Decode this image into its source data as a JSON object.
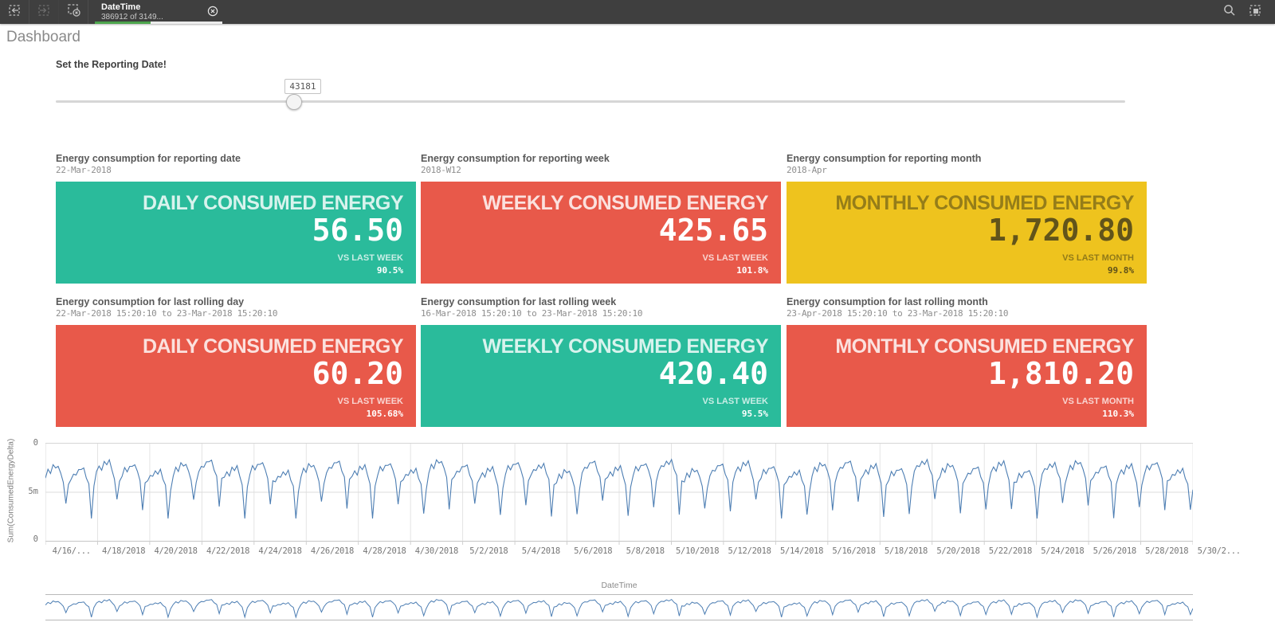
{
  "topbar": {
    "icons": {
      "undo": "undo-selection-icon",
      "redo": "redo-selection-icon",
      "clear": "clear-selections-icon",
      "search": "search-icon",
      "selections_tool": "selections-tool-icon",
      "chip_close": "close-icon"
    },
    "selection_chip": {
      "field": "DateTime",
      "count": "386912 of 3149...",
      "selected_bar_ratio": 0.44
    }
  },
  "page": {
    "title": "Dashboard"
  },
  "filter": {
    "label": "Set the Reporting Date!",
    "value": "43181",
    "handle_pct": 22.2
  },
  "kpi_colors": {
    "green": "#2abb9b",
    "red": "#e8594a",
    "yellow": "#eec31e"
  },
  "kpis": [
    {
      "title": "Energy consumption for reporting date",
      "subtitle": "22-Mar-2018",
      "theme": "green",
      "card_title": "DAILY CONSUMED ENERGY",
      "value": "56.50",
      "compare_label": "VS LAST WEEK",
      "compare_value": "90.5%"
    },
    {
      "title": "Energy consumption for reporting week",
      "subtitle": "2018-W12",
      "theme": "red",
      "card_title": "WEEKLY CONSUMED ENERGY",
      "value": "425.65",
      "compare_label": "VS LAST WEEK",
      "compare_value": "101.8%"
    },
    {
      "title": "Energy consumption for reporting month",
      "subtitle": "2018-Apr",
      "theme": "yellow",
      "card_title": "MONTHLY CONSUMED ENERGY",
      "value": "1,720.80",
      "compare_label": "VS LAST MONTH",
      "compare_value": "99.8%"
    },
    {
      "title": "Energy consumption for last rolling day",
      "subtitle": "22-Mar-2018 15:20:10 to 23-Mar-2018 15:20:10",
      "theme": "red",
      "card_title": "DAILY CONSUMED ENERGY",
      "value": "60.20",
      "compare_label": "VS LAST WEEK",
      "compare_value": "105.68%"
    },
    {
      "title": "Energy consumption for last rolling week",
      "subtitle": "16-Mar-2018 15:20:10 to 23-Mar-2018 15:20:10",
      "theme": "green",
      "card_title": "WEEKLY CONSUMED ENERGY",
      "value": "420.40",
      "compare_label": "VS LAST WEEK",
      "compare_value": "95.5%"
    },
    {
      "title": "Energy consumption for last rolling month",
      "subtitle": "23-Apr-2018 15:20:10 to 23-Mar-2018 15:20:10",
      "theme": "red",
      "card_title": "MONTHLY CONSUMED ENERGY",
      "value": "1,810.20",
      "compare_label": "VS LAST MONTH",
      "compare_value": "110.3%"
    }
  ],
  "chart_data": {
    "type": "line",
    "title": "",
    "xlabel": "DateTime",
    "ylabel": "Sum(ConsumedEnergyDelta)",
    "y_tick_labels": [
      "0",
      "5m",
      "0"
    ],
    "ylim_millions": [
      0,
      10
    ],
    "grid": true,
    "legend": "none",
    "line_color": "#4d7eb3",
    "x_tick_labels": [
      "4/16/...",
      "4/18/2018",
      "4/20/2018",
      "4/22/2018",
      "4/24/2018",
      "4/26/2018",
      "4/28/2018",
      "4/30/2018",
      "5/2/2018",
      "5/4/2018",
      "5/6/2018",
      "5/8/2018",
      "5/10/2018",
      "5/12/2018",
      "5/14/2018",
      "5/16/2018",
      "5/18/2018",
      "5/20/2018",
      "5/22/2018",
      "5/24/2018",
      "5/26/2018",
      "5/28/2018",
      "5/30/2..."
    ],
    "x_range": [
      "4/16/2018",
      "5/31/2018"
    ],
    "series": [
      {
        "name": "Sum(ConsumedEnergyDelta)",
        "units": "millions",
        "days": 45,
        "samples_per_day": 10,
        "daily_pattern_m": [
          6.6,
          7.3,
          7.0,
          7.7,
          7.5,
          7.8,
          6.9,
          6.1,
          4.0,
          5.8
        ],
        "dip_sample_index": 8,
        "day_variation_m": [
          0.0,
          -0.3,
          0.4,
          0.1,
          -0.5,
          0.2,
          0.5,
          -0.2,
          0.3,
          -0.6,
          0.1,
          0.4,
          -0.1,
          0.2,
          -0.4,
          0.5,
          0.0,
          -0.3,
          0.3,
          0.1,
          -0.5,
          0.4,
          -0.2,
          0.2,
          0.5,
          -0.4,
          0.1,
          0.3,
          -0.1,
          -0.6,
          0.2,
          0.4,
          0.0,
          -0.3,
          0.5,
          0.1,
          -0.2,
          0.3,
          -0.5,
          0.2,
          0.4,
          -0.1,
          0.0,
          0.3,
          -0.4
        ],
        "day_dip_extra_m": [
          0.3,
          1.8,
          0.2,
          0.8,
          1.5,
          0.1,
          0.9,
          1.6,
          0.4,
          1.2,
          0.2,
          1.0,
          1.7,
          0.3,
          0.8,
          1.4,
          0.1,
          1.1,
          0.5,
          1.6,
          0.9,
          0.2,
          1.3,
          0.6,
          1.8,
          0.4,
          1.0,
          0.1,
          1.5,
          0.7,
          1.2,
          0.3,
          1.6,
          0.8,
          0.2,
          1.4,
          0.5,
          1.1,
          1.7,
          0.3,
          0.9,
          1.5,
          0.6,
          1.0,
          0.4
        ]
      }
    ],
    "navigator": {
      "shown": true,
      "mirrors_main_series": true
    }
  }
}
